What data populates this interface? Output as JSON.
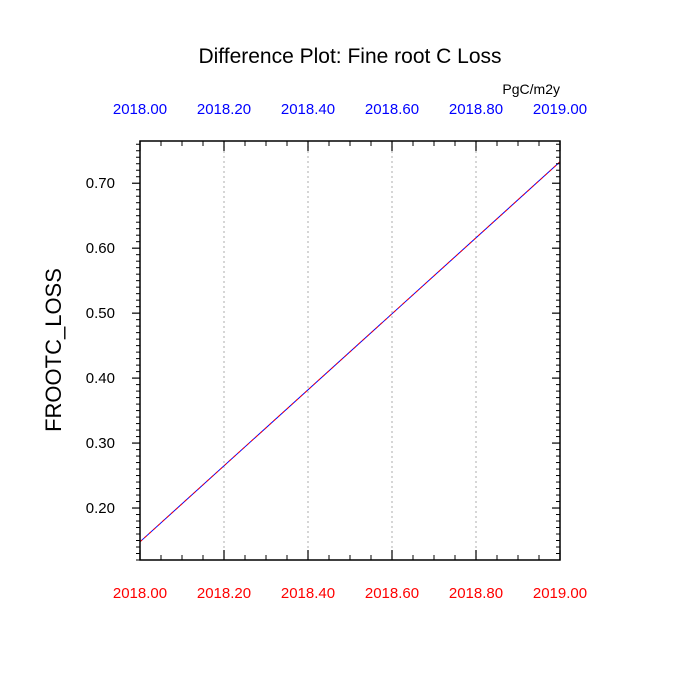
{
  "chart_data": {
    "type": "line",
    "title": "Difference Plot: Fine root C Loss",
    "units": "PgC/m2y",
    "ylabel": "FROOTC_LOSS",
    "xlim": [
      2018.0,
      2019.0
    ],
    "ylim": [
      0.12,
      0.765
    ],
    "x_ticks": [
      2018.0,
      2018.2,
      2018.4,
      2018.6,
      2018.8,
      2019.0
    ],
    "x_tick_labels": [
      "2018.00",
      "2018.20",
      "2018.40",
      "2018.60",
      "2018.80",
      "2019.00"
    ],
    "y_ticks": [
      0.2,
      0.3,
      0.4,
      0.5,
      0.6,
      0.7
    ],
    "y_tick_labels": [
      "0.20",
      "0.30",
      "0.40",
      "0.50",
      "0.60",
      "0.70"
    ],
    "grid": "vertical dotted",
    "colors": {
      "bottom_axis_labels": "#ff0000",
      "top_axis_labels": "#0000ff",
      "line_solid": "#0000ff",
      "line_dashed": "#ff0000"
    },
    "series": [
      {
        "x": [
          2018.0,
          2019.0
        ],
        "values": [
          0.148,
          0.733
        ],
        "style": "solid",
        "color": "#0000ff"
      },
      {
        "x": [
          2018.0,
          2019.0
        ],
        "values": [
          0.148,
          0.733
        ],
        "style": "dashed",
        "color": "#ff0000"
      }
    ]
  }
}
